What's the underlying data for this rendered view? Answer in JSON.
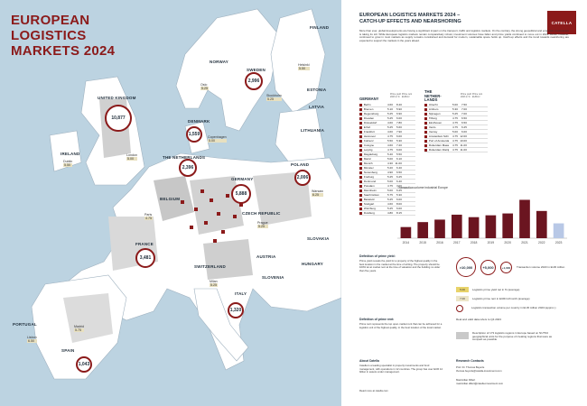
{
  "map": {
    "title": "EUROPEAN LOGISTICS\nMARKETS 2024",
    "countries": [
      {
        "key": "norway",
        "label": "NORWAY"
      },
      {
        "key": "sweden",
        "label": "SWEDEN"
      },
      {
        "key": "finland",
        "label": "FINLAND"
      },
      {
        "key": "estonia",
        "label": "ESTONIA"
      },
      {
        "key": "latvia",
        "label": "LATVIA"
      },
      {
        "key": "lithuania",
        "label": "LITHUANIA"
      },
      {
        "key": "denmark",
        "label": "DENMARK"
      },
      {
        "key": "uk",
        "label": "UNITED KINGDOM"
      },
      {
        "key": "ireland",
        "label": "IRELAND"
      },
      {
        "key": "netherlands",
        "label": "THE NETHERLANDS"
      },
      {
        "key": "belgium",
        "label": "BELGIUM"
      },
      {
        "key": "germany",
        "label": "GERMANY"
      },
      {
        "key": "poland",
        "label": "POLAND"
      },
      {
        "key": "czech",
        "label": "CZECH REPUBLIC"
      },
      {
        "key": "slovakia",
        "label": "SLOVAKIA"
      },
      {
        "key": "austria",
        "label": "AUSTRIA"
      },
      {
        "key": "hungary",
        "label": "HUNGARY"
      },
      {
        "key": "france",
        "label": "FRANCE"
      },
      {
        "key": "switzerland",
        "label": "SWITZERLAND"
      },
      {
        "key": "slovenia",
        "label": "SLOVENIA"
      },
      {
        "key": "italy",
        "label": "ITALY"
      },
      {
        "key": "spain",
        "label": "SPAIN"
      },
      {
        "key": "portugal",
        "label": "PORTUGAL"
      }
    ],
    "bubbles": [
      {
        "key": "uk",
        "value": "10,877"
      },
      {
        "key": "sweden",
        "value": "2,996"
      },
      {
        "key": "denmark",
        "value": "1,559"
      },
      {
        "key": "netherlands",
        "value": "2,396"
      },
      {
        "key": "germany",
        "value": "5,888"
      },
      {
        "key": "poland",
        "value": "2,006"
      },
      {
        "key": "france",
        "value": "3,481"
      },
      {
        "key": "italy",
        "value": "1,320"
      },
      {
        "key": "spain",
        "value": "1,043"
      }
    ],
    "city_values": [
      {
        "key": "c1",
        "name": "Oslo",
        "value": "5.25"
      },
      {
        "key": "c2",
        "name": "Stockholm",
        "value": "5.25"
      },
      {
        "key": "c3",
        "name": "Helsinki",
        "value": "5.50"
      },
      {
        "key": "c4",
        "name": "Copenhagen",
        "value": "5.00"
      },
      {
        "key": "c5",
        "name": "London",
        "value": "5.00"
      },
      {
        "key": "c6",
        "name": "Dublin",
        "value": "5.50"
      },
      {
        "key": "c7",
        "name": "Paris",
        "value": "4.75"
      },
      {
        "key": "c8",
        "name": "Madrid",
        "value": "5.75"
      },
      {
        "key": "c9",
        "name": "Lisbon",
        "value": "6.50"
      },
      {
        "key": "c10",
        "name": "Milan",
        "value": "5.25"
      },
      {
        "key": "c11",
        "name": "Warsaw",
        "value": "6.25"
      },
      {
        "key": "c12",
        "name": "Prague",
        "value": "5.25"
      }
    ]
  },
  "doc": {
    "logo": "CATELLA",
    "title": "EUROPEAN LOGISTICS MARKETS 2024 –\nCATCH-UP EFFECTS AND NEARSHORING",
    "intro": "More than ever, global developments are having a significant impact on the transport, traffic and logistics markets. On the contrary, the strong geopolitical and economic environment is taking its toll. While European logistics markets remain comparatively robust, investment volumes have fallen and prime yields continued to move out in 2023. Rents, however, continued to grow in most markets as supply remains constrained and demand for modern, sustainable space holds up. Catch-up effects and the trend towards nearshoring are expected to support the markets in the years ahead.",
    "germany_title": "GERMANY",
    "netherlands_title": "THE\nNETHER-\nLANDS",
    "col_yield": "Prime yield\n2023 in %",
    "col_rent": "Prime rent\nEUR/m²",
    "germany_rows": [
      {
        "city": "Berlin",
        "y": "4.60",
        "r": "8.40"
      },
      {
        "city": "Bremen",
        "y": "5.10",
        "r": "5.90"
      },
      {
        "city": "Regensburg",
        "y": "5.25",
        "r": "6.90"
      },
      {
        "city": "Dresden",
        "y": "5.25",
        "r": "6.00"
      },
      {
        "city": "Düsseldorf",
        "y": "4.60",
        "r": "7.80"
      },
      {
        "city": "Erfurt",
        "y": "5.25",
        "r": "5.60"
      },
      {
        "city": "Frankfurt",
        "y": "4.60",
        "r": "7.90"
      },
      {
        "city": "Hannover",
        "y": "4.75",
        "r": "6.00"
      },
      {
        "city": "Koblenz",
        "y": "5.50",
        "r": "5.30"
      },
      {
        "city": "Cologne",
        "y": "4.60",
        "r": "7.20"
      },
      {
        "city": "Leipzig",
        "y": "4.75",
        "r": "6.00"
      },
      {
        "city": "Magdeburg",
        "y": "5.40",
        "r": "5.50"
      },
      {
        "city": "Mainz",
        "y": "5.00",
        "r": "6.10"
      },
      {
        "city": "Munich",
        "y": "4.30",
        "r": "11.00"
      },
      {
        "city": "Münster",
        "y": "5.20",
        "r": "6.40"
      },
      {
        "city": "Nuremberg",
        "y": "4.90",
        "r": "6.50"
      },
      {
        "city": "Freiburg",
        "y": "5.25",
        "r": "6.25"
      },
      {
        "city": "Dortmund",
        "y": "5.00",
        "r": "6.40"
      },
      {
        "city": "Potsdam",
        "y": "4.75",
        "r": "7.00"
      },
      {
        "city": "Mannheim",
        "y": "5.00",
        "r": "6.25"
      },
      {
        "city": "Saarbrücken",
        "y": "5.75",
        "r": "5.30"
      },
      {
        "city": "Bielefeld",
        "y": "5.25",
        "r": "6.00"
      },
      {
        "city": "Stuttgart",
        "y": "4.60",
        "r": "8.00"
      },
      {
        "city": "Würzburg",
        "y": "5.25",
        "r": "6.00"
      },
      {
        "city": "Duisburg",
        "y": "4.80",
        "r": "8.15"
      }
    ],
    "netherlands_rows": [
      {
        "city": "Utrecht",
        "y": "5.00",
        "r": "7.50"
      },
      {
        "city": "Arnhem",
        "y": "5.30",
        "r": "7.00"
      },
      {
        "city": "Nijmegen",
        "y": "5.25",
        "r": "7.00"
      },
      {
        "city": "Tilburg",
        "y": "4.75",
        "r": "6.50"
      },
      {
        "city": "Eindhoven",
        "y": "4.75",
        "r": "6.50"
      },
      {
        "city": "Venlo",
        "y": "4.75",
        "r": "6.25"
      },
      {
        "city": "Venray",
        "y": "5.00",
        "r": "6.00"
      },
      {
        "city": "Amsterdam Schiphol",
        "y": "4.75",
        "r": "12.00"
      },
      {
        "city": "Port of Amsterdam",
        "y": "4.75",
        "r": "10.00"
      },
      {
        "city": "Rotterdam Maasvlakte",
        "y": "4.75",
        "r": "11.00"
      },
      {
        "city": "Rotterdam Distripark",
        "y": "4.75",
        "r": "11.00"
      }
    ],
    "chart_title": "Transaction volume industrial Europe"
  },
  "chart_data": {
    "type": "bar",
    "title": "Transaction volume industrial Europe",
    "categories": [
      "2014",
      "2015",
      "2016",
      "2017",
      "2018",
      "2019",
      "2020",
      "2021",
      "2022",
      "2023"
    ],
    "values": [
      18,
      26,
      30,
      38,
      34,
      37,
      40,
      62,
      44,
      24
    ],
    "highlight_last": true,
    "colors": {
      "bar": "#6b1520",
      "last": "#b8c8e6"
    }
  },
  "legend": {
    "bubble_small": ">10,000",
    "bubble_mid": "+5,000",
    "bubble_large": "+1,000",
    "bubble_caption": "Transaction volume 2023 in EUR million",
    "row1_chip": "5.00",
    "row1_text": "Logistics prime yield net in % (average)",
    "row2_chip": "7.00",
    "row2_text": "Logistics prime rent in EUR/m²/month (average)",
    "row3_text": "Logistics transaction volume per country in EUR million 2023 (approx.)",
    "row4_text": "Real and valid data refers to Q4 2023",
    "row5_text": "Description of 173 logistics regions in Europe based on NUTS3 geographical units for the purpose of creating regions that were as compact as possible"
  },
  "sections": {
    "prime_yield_head": "Definition of prime yield:",
    "prime_yield_text": "Prime yield reveals the yield for a property of the highest quality in the best location in the market at the time of writing. The property should be 100% let at market rent at the time of valuation and the building no older than five years.",
    "prime_rent_head": "Definition of prime rent:",
    "prime_rent_text": "Prime rent represents the top open-market rent that can be achieved for a logistics unit of the highest quality, in the best location of the local market.",
    "about_head": "About Catella",
    "about_text": "Catella is a leading specialist in property investments and fund management, with operations in 12 countries. The group has over EUR 14 billion in assets under management.",
    "contacts_head": "Research Contacts",
    "contact1": "Prof. Dr. Thomas Beyerle",
    "contact2": "thomas.beyerle@catella-investment.com",
    "contact3": "Maximilian Dillert",
    "contact4": "maximilian.dillert@catella-investment.com",
    "website": "Read more at catella.com"
  }
}
